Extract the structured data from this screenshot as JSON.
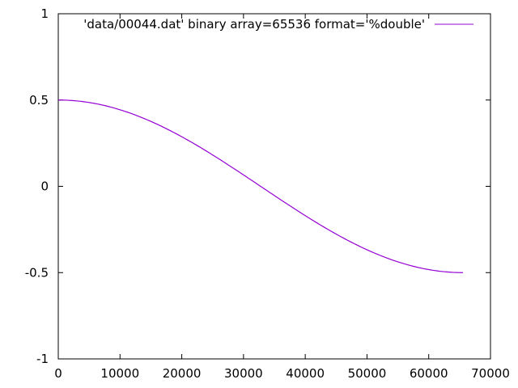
{
  "chart_data": {
    "type": "line",
    "title": "",
    "xlabel": "",
    "ylabel": "",
    "xlim": [
      0,
      70000
    ],
    "ylim": [
      -1,
      1
    ],
    "x_ticks": [
      0,
      10000,
      20000,
      30000,
      40000,
      50000,
      60000,
      70000
    ],
    "x_tick_labels": [
      "0",
      "10000",
      "20000",
      "30000",
      "40000",
      "50000",
      "60000",
      "70000"
    ],
    "y_ticks": [
      -1,
      -0.5,
      0,
      0.5,
      1
    ],
    "y_tick_labels": [
      "-1",
      "-0.5",
      "0",
      "0.5",
      "1"
    ],
    "grid": false,
    "legend_position": "top-right",
    "series": [
      {
        "name": "'data/00044.dat' binary array=65536 format='%double'",
        "color": "#9400d3",
        "x": [
          0,
          4096,
          8192,
          12288,
          16384,
          20480,
          24576,
          28672,
          32768,
          36864,
          40960,
          45056,
          49152,
          53248,
          57344,
          61440,
          65535
        ],
        "y": [
          0.5,
          0.4952,
          0.481,
          0.4578,
          0.4268,
          0.388,
          0.3415,
          0.289,
          0.0,
          -0.0975,
          -0.1915,
          -0.2778,
          -0.3536,
          -0.4157,
          -0.4619,
          -0.4904,
          -0.5
        ]
      }
    ]
  }
}
